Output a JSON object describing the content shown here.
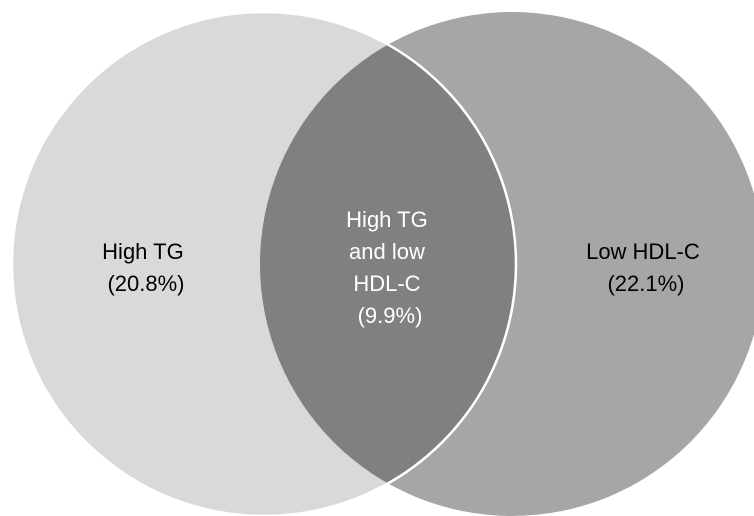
{
  "diagram": {
    "type": "venn",
    "left_set": {
      "label_line1": "High TG",
      "label_line2": "(20.8%)",
      "color": "#d9d9d9"
    },
    "right_set": {
      "label_line1": "Low HDL-C",
      "label_line2": "(22.1%)",
      "color": "#a6a6a6"
    },
    "overlap": {
      "label_line1": "High TG",
      "label_line2": "and low",
      "label_line3": "HDL-C",
      "label_line4": "(9.9%)",
      "color": "#808080"
    },
    "label_colors": {
      "outer": "#000000",
      "overlap": "#ffffff"
    },
    "outline_color": "#ffffff"
  }
}
